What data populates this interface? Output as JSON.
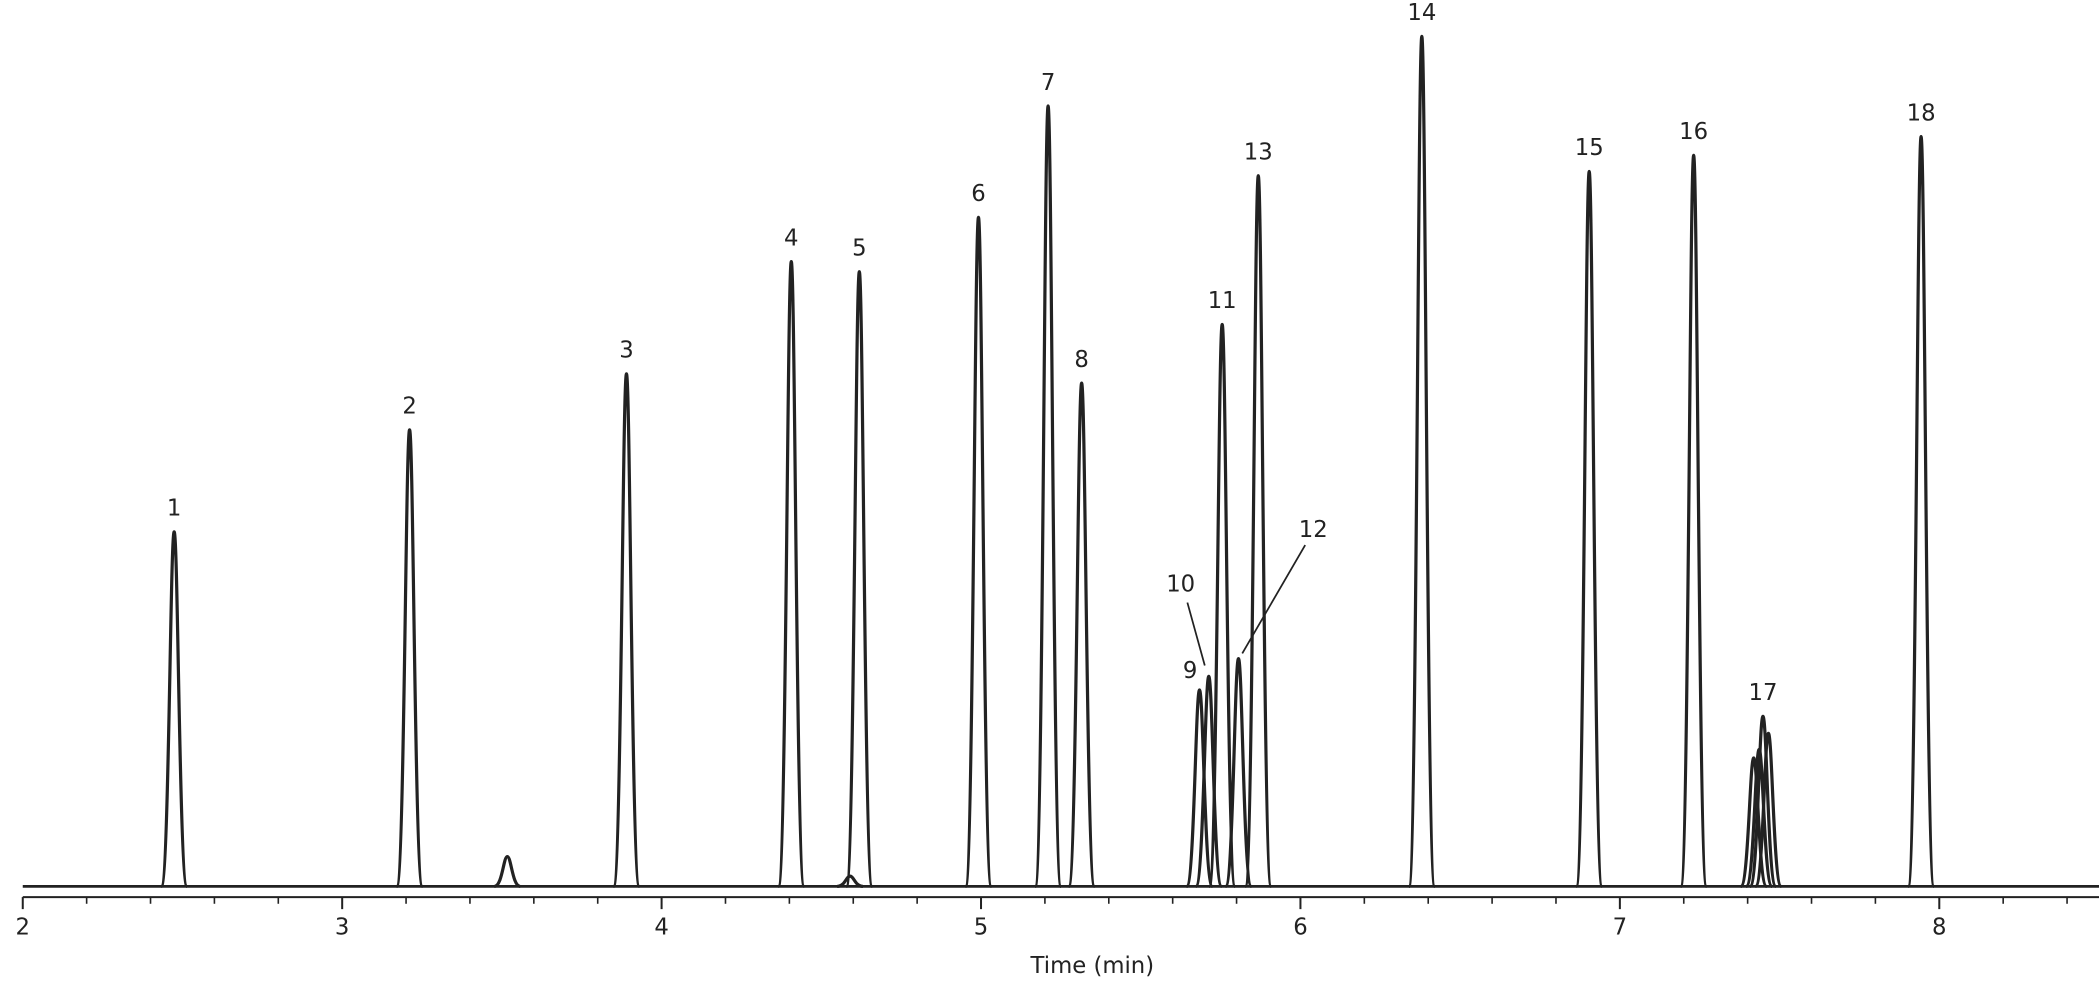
{
  "chart_data": {
    "type": "chromatogram",
    "x_label": "Time (min)",
    "color": "#222222",
    "xlim": [
      2,
      8.5
    ],
    "xticks": [
      2,
      3,
      4,
      5,
      6,
      7,
      8
    ],
    "xminorticks": [
      2.2,
      2.4,
      2.6,
      2.8,
      3.2,
      3.4,
      3.6,
      3.8,
      4.2,
      4.4,
      4.6,
      4.8,
      5.2,
      5.4,
      5.6,
      5.8,
      6.2,
      6.4,
      6.6,
      6.8,
      7.2,
      7.4,
      7.6,
      7.8,
      8.2,
      8.4
    ],
    "ylim": [
      0,
      100
    ],
    "x": [
      2.474,
      3.211,
      3.517,
      3.89,
      4.406,
      4.59,
      4.619,
      4.992,
      5.21,
      5.315,
      5.684,
      5.713,
      5.755,
      5.806,
      5.868,
      6.38,
      6.904,
      7.231,
      7.419,
      7.436,
      7.448,
      7.465,
      7.943
    ],
    "values": [
      41.7,
      53.7,
      3.5,
      60.3,
      73.5,
      1.2,
      72.3,
      78.7,
      91.8,
      59.2,
      23.1,
      24.7,
      66.1,
      26.8,
      83.6,
      100,
      84.1,
      86.0,
      15.1,
      16.1,
      20.0,
      18.0,
      88.2
    ],
    "labels": [
      "1",
      "2",
      null,
      "3",
      "4",
      null,
      "5",
      "6",
      "7",
      "8",
      "9",
      "10",
      "11",
      "12",
      "13",
      "14",
      "15",
      "16",
      null,
      null,
      "17",
      null,
      "18"
    ]
  }
}
